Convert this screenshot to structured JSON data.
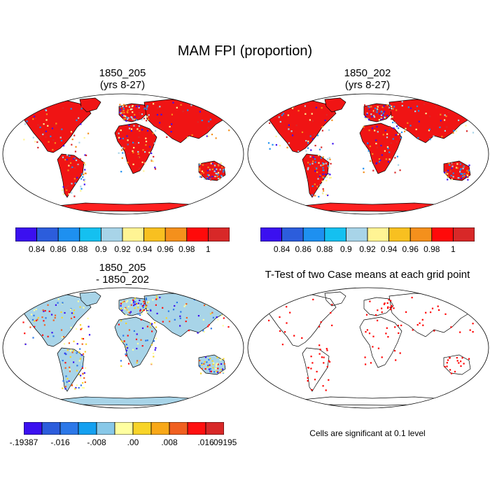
{
  "main_title": "MAM FPI (proportion)",
  "panels": [
    {
      "title": "1850_205\n(yrs 8-27)",
      "kind": "fpi"
    },
    {
      "title": "1850_202\n(yrs 8-27)",
      "kind": "fpi"
    },
    {
      "title": "1850_205\n- 1850_202",
      "kind": "diff"
    },
    {
      "title": "T-Test of two Case means at each grid point",
      "kind": "ttest"
    }
  ],
  "colorbar_fpi": {
    "colors": [
      "#3b10f0",
      "#2c5ddc",
      "#1e90f0",
      "#14c0f0",
      "#a8d4e8",
      "#fff494",
      "#f8c020",
      "#f4901c",
      "#ff0a0a",
      "#d82828"
    ],
    "labels": [
      "0.84",
      "0.86",
      "0.88",
      "0.9",
      "0.92",
      "0.94",
      "0.96",
      "0.98",
      "1"
    ]
  },
  "colorbar_diff": {
    "colors": [
      "#3b10f0",
      "#2c5ddc",
      "#2c78e8",
      "#14a0f0",
      "#88c8e8",
      "#ffffa0",
      "#f8d428",
      "#f8a818",
      "#f06020",
      "#ff1010",
      "#d82828"
    ],
    "labels": [
      "-.19387",
      "-.016",
      "-.008",
      ".00",
      ".008",
      ".016",
      ".09195"
    ],
    "label_boundaries": [
      0,
      2,
      4,
      6,
      8,
      10,
      11
    ]
  },
  "significance_note": "Cells are significant at 0.1 level"
}
